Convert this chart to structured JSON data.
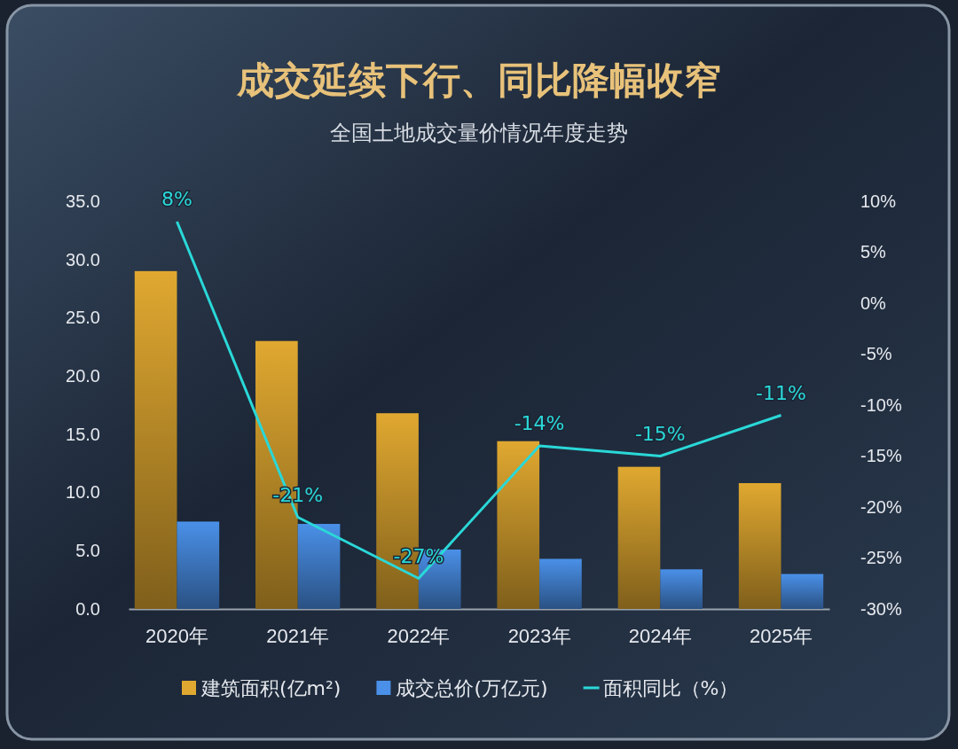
{
  "chart_data": {
    "type": "bar",
    "title": "成交延续下行、同比降幅收窄",
    "subtitle": "全国土地成交量价情况年度走势",
    "categories": [
      "2020年",
      "2021年",
      "2022年",
      "2023年",
      "2024年",
      "2025年"
    ],
    "series": [
      {
        "name": "建筑面积(亿m²)",
        "color": "#e0a830",
        "values": [
          29.0,
          23.0,
          16.8,
          14.4,
          12.2,
          10.8
        ]
      },
      {
        "name": "成交总价(万亿元)",
        "color": "#4a90e8",
        "values": [
          7.5,
          7.3,
          5.1,
          4.3,
          3.4,
          3.0
        ]
      },
      {
        "name": "面积同比（%）",
        "type": "line",
        "axis": "y2",
        "color": "#2ad8d8",
        "values": [
          8,
          -21,
          -27,
          -14,
          -15,
          -11
        ],
        "value_labels": [
          "8%",
          "-21%",
          "-27%",
          "-14%",
          "-15%",
          "-11%"
        ]
      }
    ],
    "ylim": [
      0,
      35
    ],
    "yticks": [
      {
        "value": 0,
        "label": "0.0"
      },
      {
        "value": 5,
        "label": "5.0"
      },
      {
        "value": 10,
        "label": "10.0"
      },
      {
        "value": 15,
        "label": "15.0"
      },
      {
        "value": 20,
        "label": "20.0"
      },
      {
        "value": 25,
        "label": "25.0"
      },
      {
        "value": 30,
        "label": "30.0"
      },
      {
        "value": 35,
        "label": "35.0"
      }
    ],
    "y2lim": [
      -30,
      10
    ],
    "y2ticks": [
      {
        "value": -30,
        "label": "-30%"
      },
      {
        "value": -25,
        "label": "-25%"
      },
      {
        "value": -20,
        "label": "-20%"
      },
      {
        "value": -15,
        "label": "-15%"
      },
      {
        "value": -10,
        "label": "-10%"
      },
      {
        "value": -5,
        "label": "-5%"
      },
      {
        "value": 0,
        "label": "0%"
      },
      {
        "value": 5,
        "label": "5%"
      },
      {
        "value": 10,
        "label": "10%"
      }
    ],
    "legend": "bottom",
    "grid": false,
    "marker": "none"
  }
}
